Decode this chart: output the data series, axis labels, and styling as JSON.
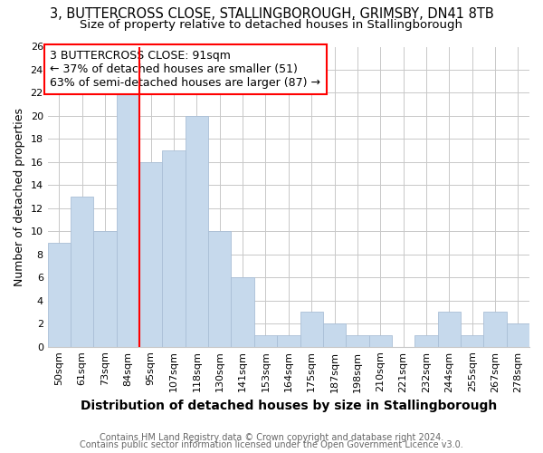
{
  "title": "3, BUTTERCROSS CLOSE, STALLINGBOROUGH, GRIMSBY, DN41 8TB",
  "subtitle": "Size of property relative to detached houses in Stallingborough",
  "xlabel": "Distribution of detached houses by size in Stallingborough",
  "ylabel": "Number of detached properties",
  "footnote1": "Contains HM Land Registry data © Crown copyright and database right 2024.",
  "footnote2": "Contains public sector information licensed under the Open Government Licence v3.0.",
  "annotation_line1": "3 BUTTERCROSS CLOSE: 91sqm",
  "annotation_line2": "← 37% of detached houses are smaller (51)",
  "annotation_line3": "63% of semi-detached houses are larger (87) →",
  "categories": [
    "50sqm",
    "61sqm",
    "73sqm",
    "84sqm",
    "95sqm",
    "107sqm",
    "118sqm",
    "130sqm",
    "141sqm",
    "153sqm",
    "164sqm",
    "175sqm",
    "187sqm",
    "198sqm",
    "210sqm",
    "221sqm",
    "232sqm",
    "244sqm",
    "255sqm",
    "267sqm",
    "278sqm"
  ],
  "values": [
    9,
    13,
    10,
    22,
    16,
    17,
    20,
    10,
    6,
    1,
    1,
    3,
    2,
    1,
    1,
    0,
    1,
    3,
    1,
    3,
    2
  ],
  "bar_color": "#c6d9ec",
  "bar_edge_color": "#aabfd6",
  "red_line_x": 4.0,
  "ylim": [
    0,
    26
  ],
  "yticks": [
    0,
    2,
    4,
    6,
    8,
    10,
    12,
    14,
    16,
    18,
    20,
    22,
    24,
    26
  ],
  "background_color": "#ffffff",
  "grid_color": "#c8c8c8",
  "title_fontsize": 10.5,
  "subtitle_fontsize": 9.5,
  "xlabel_fontsize": 10,
  "ylabel_fontsize": 9,
  "tick_fontsize": 8,
  "annotation_fontsize": 9,
  "footnote_fontsize": 7
}
